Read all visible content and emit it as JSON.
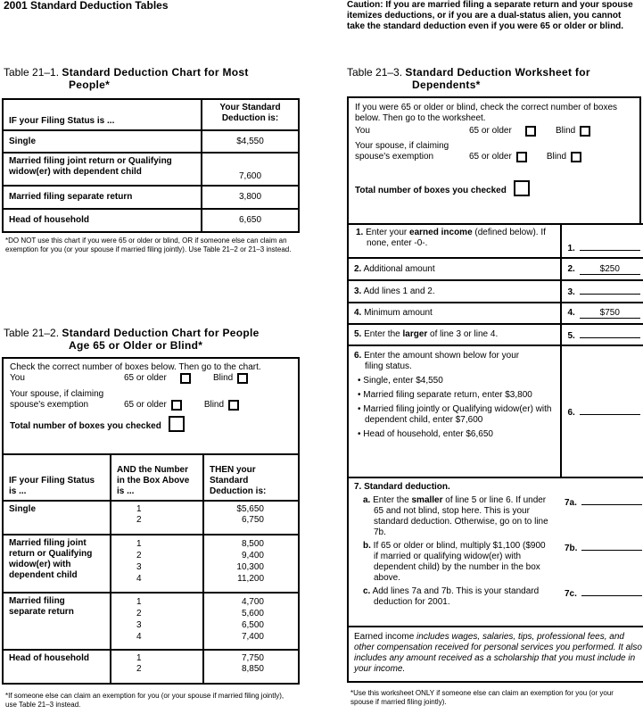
{
  "title": "2001 Standard Deduction Tables",
  "caution": "Caution: If you are married filing a separate return and your spouse itemizes deductions, or if you are a dual-status alien, you cannot take the standard deduction even if you were 65 or older or blind.",
  "t1": {
    "num": "Table 21–1.",
    "name1": "Standard Deduction Chart for Most",
    "name2": "People*",
    "h1": "IF your Filing Status is ...",
    "h2": "Your Standard Deduction is:",
    "rows": [
      {
        "status": "Single",
        "amount": "$4,550"
      },
      {
        "status": "Married filing joint return or Qualifying widow(er) with dependent child",
        "amount": "7,600"
      },
      {
        "status": "Married filing separate return",
        "amount": "3,800"
      },
      {
        "status": "Head of household",
        "amount": "6,650"
      }
    ],
    "footnote": "*DO NOT use this chart if you were 65 or older or blind, OR if someone else can claim an exemption for you (or your spouse if married filing jointly). Use Table 21–2 or 21–3 instead."
  },
  "check": {
    "intro2": "Check the correct number of boxes below. Then go to the chart.",
    "intro3": "If you were 65 or older or blind, check the correct number of boxes below. Then go to the worksheet.",
    "you": "You",
    "spouse": "Your spouse, if claiming spouse's exemption",
    "older": "65 or older",
    "blind": "Blind",
    "total": "Total number of boxes you checked"
  },
  "t2": {
    "num": "Table 21–2.",
    "name1": "Standard Deduction Chart for People",
    "name2": "Age 65 or Older or Blind*",
    "h1": "IF your Filing Status is ...",
    "h2": "AND the Number in the Box Above is ...",
    "h3": "THEN your Standard Deduction is:",
    "rows": [
      {
        "status": "Single",
        "nums": "1\n2",
        "amounts": "$5,650\n6,750"
      },
      {
        "status": "Married filing joint return or Qualifying widow(er) with dependent child",
        "nums": "1\n2\n3\n4",
        "amounts": "8,500\n9,400\n10,300\n11,200"
      },
      {
        "status": "Married filing separate return",
        "nums": "1\n2\n3\n4",
        "amounts": "4,700\n5,600\n6,500\n7,400"
      },
      {
        "status": "Head of household",
        "nums": "1\n2",
        "amounts": "7,750\n8,850"
      }
    ],
    "footnote": "*If someone else can claim an exemption for you (or your spouse if married filing jointly), use Table 21–3 instead."
  },
  "t3": {
    "num": "Table 21–3.",
    "name1": "Standard Deduction Worksheet for",
    "name2": "Dependents*",
    "lines": [
      {
        "n": "1.",
        "pre": "Enter your ",
        "bold": "earned income",
        "post": " (defined below). If none, enter -0-.",
        "label": "1.",
        "value": ""
      },
      {
        "n": "2.",
        "pre": "Additional amount",
        "bold": "",
        "post": "",
        "label": "2.",
        "value": "$250"
      },
      {
        "n": "3.",
        "pre": "Add lines 1 and 2.",
        "bold": "",
        "post": "",
        "label": "3.",
        "value": ""
      },
      {
        "n": "4.",
        "pre": "Minimum amount",
        "bold": "",
        "post": "",
        "label": "4.",
        "value": "$750"
      },
      {
        "n": "5.",
        "pre": "Enter the ",
        "bold": "larger",
        "post": " of line 3 or line 4.",
        "label": "5.",
        "value": ""
      }
    ],
    "l6": {
      "n": "6.",
      "text": "Enter the amount shown below for your filing status.",
      "bullets": [
        "Single, enter $4,550",
        "Married filing separate return, enter $3,800",
        "Married filing jointly or Qualifying widow(er) with dependent child, enter $7,600",
        "Head of household, enter $6,650"
      ],
      "label": "6."
    },
    "l7": {
      "n": "7.",
      "title": "Standard deduction.",
      "a": {
        "k": "a.",
        "pre": "Enter the ",
        "bold": "smaller",
        "post": " of line 5 or line 6. If under 65 and not blind, stop here. This is your standard deduction. Otherwise, go on to line 7b.",
        "label": "7a."
      },
      "b": {
        "k": "b.",
        "text": "If 65 or older or blind, multiply $1,100 ($900 if married or qualifying widow(er) with dependent child) by the number in the box above.",
        "label": "7b."
      },
      "c": {
        "k": "c.",
        "text": "Add lines 7a and 7b. This is your standard deduction for 2001.",
        "label": "7c."
      }
    },
    "earned": {
      "lead": "Earned income",
      "rest": " includes wages, salaries, tips, professional fees, and other compensation received for personal services you performed. It also includes any amount received as a scholarship that you must include in your income."
    },
    "footnote": "*Use this worksheet ONLY if someone else can claim an exemption for you (or your spouse if married filing jointly)."
  }
}
